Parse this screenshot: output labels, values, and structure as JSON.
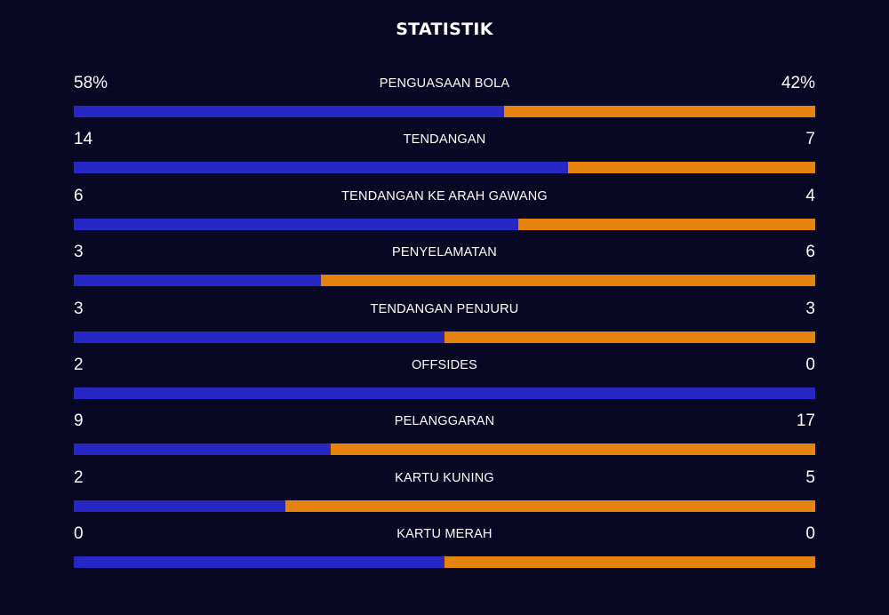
{
  "title": "STATISTIK",
  "colors": {
    "background": "#080724",
    "home": "#2627c5",
    "away": "#e5830f"
  },
  "stats": [
    {
      "label": "PENGUASAAN BOLA",
      "home": "58%",
      "away": "42%",
      "home_share": 0.58
    },
    {
      "label": "TENDANGAN",
      "home": "14",
      "away": "7",
      "home_share": 0.6667
    },
    {
      "label": "TENDANGAN KE ARAH GAWANG",
      "home": "6",
      "away": "4",
      "home_share": 0.6
    },
    {
      "label": "PENYELAMATAN",
      "home": "3",
      "away": "6",
      "home_share": 0.3333
    },
    {
      "label": "TENDANGAN PENJURU",
      "home": "3",
      "away": "3",
      "home_share": 0.5
    },
    {
      "label": "OFFSIDES",
      "home": "2",
      "away": "0",
      "home_share": 1.0
    },
    {
      "label": "PELANGGARAN",
      "home": "9",
      "away": "17",
      "home_share": 0.3462
    },
    {
      "label": "KARTU KUNING",
      "home": "2",
      "away": "5",
      "home_share": 0.2857
    },
    {
      "label": "KARTU MERAH",
      "home": "0",
      "away": "0",
      "home_share": 0.5
    }
  ]
}
